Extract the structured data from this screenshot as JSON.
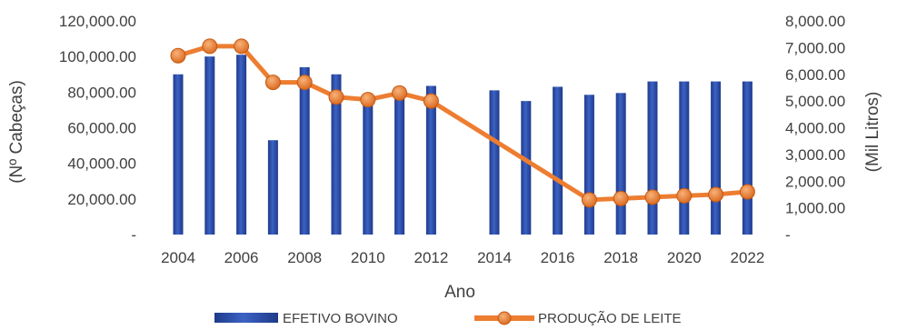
{
  "chart_data": {
    "type": "bar+line",
    "xlabel": "Ano",
    "y_left_label": "(Nº Cabeças)",
    "y_right_label": "(Mil Litros)",
    "y_left_ticks": [
      "-",
      "20,000.00",
      "40,000.00",
      "60,000.00",
      "80,000.00",
      "100,000.00",
      "120,000.00"
    ],
    "y_right_ticks": [
      "-",
      "1,000.00",
      "2,000.00",
      "3,000.00",
      "4,000.00",
      "5,000.00",
      "6,000.00",
      "7,000.00",
      "8,000.00"
    ],
    "y_left_lim": [
      0,
      120000
    ],
    "y_right_lim": [
      0,
      8000
    ],
    "x_tick_labels": [
      "2004",
      "2006",
      "2008",
      "2010",
      "2012",
      "2014",
      "2016",
      "2018",
      "2020",
      "2022"
    ],
    "years": [
      2004,
      2005,
      2006,
      2007,
      2008,
      2009,
      2010,
      2011,
      2012,
      2013,
      2014,
      2015,
      2016,
      2017,
      2018,
      2019,
      2020,
      2021,
      2022
    ],
    "series": [
      {
        "name": "EFETIVO BOVINO",
        "kind": "bar",
        "axis": "left",
        "color": "#2E4FA8",
        "values": [
          90000,
          100000,
          101000,
          53000,
          94000,
          90000,
          77000,
          83000,
          83500,
          null,
          81000,
          75000,
          83000,
          78500,
          79500,
          86000,
          86000,
          86000,
          86000
        ]
      },
      {
        "name": "PRODUÇÃO DE LEITE",
        "kind": "line",
        "axis": "right",
        "color": "#ED7D31",
        "marker": "circle",
        "points": [
          [
            2004,
            6700
          ],
          [
            2005,
            7050
          ],
          [
            2006,
            7050
          ],
          [
            2007,
            5700
          ],
          [
            2008,
            5700
          ],
          [
            2009,
            5150
          ],
          [
            2010,
            5050
          ],
          [
            2011,
            5300
          ],
          [
            2012,
            5000
          ],
          [
            2017,
            1300
          ],
          [
            2018,
            1350
          ],
          [
            2019,
            1400
          ],
          [
            2020,
            1450
          ],
          [
            2021,
            1500
          ],
          [
            2022,
            1600
          ]
        ]
      }
    ],
    "grid": false,
    "legend": "bottom"
  }
}
